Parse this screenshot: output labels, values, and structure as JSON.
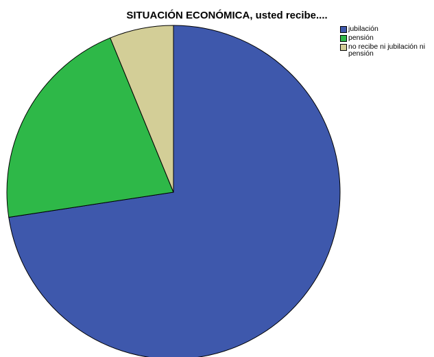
{
  "chart_data": {
    "type": "pie",
    "title": "SITUACIÓN ECONÓMICA, usted recibe....",
    "categories": [
      "jubilación",
      "pensión",
      "no recibe ni jubilación ni pensión"
    ],
    "values": [
      72.6,
      21.2,
      6.2
    ],
    "colors": [
      "#3e58ac",
      "#2eb848",
      "#d3ce97"
    ],
    "start_angle_deg": 0,
    "direction": "clockwise",
    "legend_position": "top-right"
  }
}
